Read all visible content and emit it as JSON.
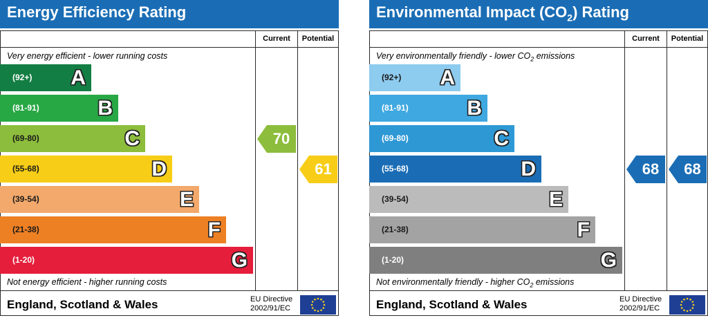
{
  "chart_data": [
    {
      "type": "bar",
      "title": "Energy Efficiency Rating",
      "columns": [
        "Current",
        "Potential"
      ],
      "top_note": "Very energy efficient - lower running costs",
      "bottom_note": "Not energy efficient - higher running costs",
      "bands": [
        {
          "letter": "A",
          "range": "(92+)",
          "color": "#137e43"
        },
        {
          "letter": "B",
          "range": "(81-91)",
          "color": "#28a745"
        },
        {
          "letter": "C",
          "range": "(69-80)",
          "color": "#8dbd3c"
        },
        {
          "letter": "D",
          "range": "(55-68)",
          "color": "#f7cd17"
        },
        {
          "letter": "E",
          "range": "(39-54)",
          "color": "#f2a96b"
        },
        {
          "letter": "F",
          "range": "(21-38)",
          "color": "#ee8024"
        },
        {
          "letter": "G",
          "range": "(1-20)",
          "color": "#e51e3c"
        }
      ],
      "current": {
        "value": 70,
        "band": "C",
        "color": "#8dbd3c"
      },
      "potential": {
        "value": 61,
        "band": "D",
        "color": "#f7cd17"
      },
      "footer": "England, Scotland & Wales",
      "directive_line1": "EU Directive",
      "directive_line2": "2002/91/EC"
    },
    {
      "type": "bar",
      "title": "Environmental Impact (CO2) Rating",
      "columns": [
        "Current",
        "Potential"
      ],
      "top_note": "Very environmentally friendly - lower CO2 emissions",
      "bottom_note": "Not environmentally friendly - higher CO2 emissions",
      "bands": [
        {
          "letter": "A",
          "range": "(92+)",
          "color": "#8dcbef"
        },
        {
          "letter": "B",
          "range": "(81-91)",
          "color": "#3fa8e0"
        },
        {
          "letter": "C",
          "range": "(69-80)",
          "color": "#2e98d5"
        },
        {
          "letter": "D",
          "range": "(55-68)",
          "color": "#1a6db5"
        },
        {
          "letter": "E",
          "range": "(39-54)",
          "color": "#bbbbbb"
        },
        {
          "letter": "F",
          "range": "(21-38)",
          "color": "#a3a3a3"
        },
        {
          "letter": "G",
          "range": "(1-20)",
          "color": "#7f7f7f"
        }
      ],
      "current": {
        "value": 68,
        "band": "D",
        "color": "#1a6db5"
      },
      "potential": {
        "value": 68,
        "band": "D",
        "color": "#1a6db5"
      },
      "footer": "England, Scotland & Wales",
      "directive_line1": "EU Directive",
      "directive_line2": "2002/91/EC"
    }
  ],
  "eu_flag_colors": {
    "background": "#1f3f94",
    "stars": "#f6d21a"
  }
}
